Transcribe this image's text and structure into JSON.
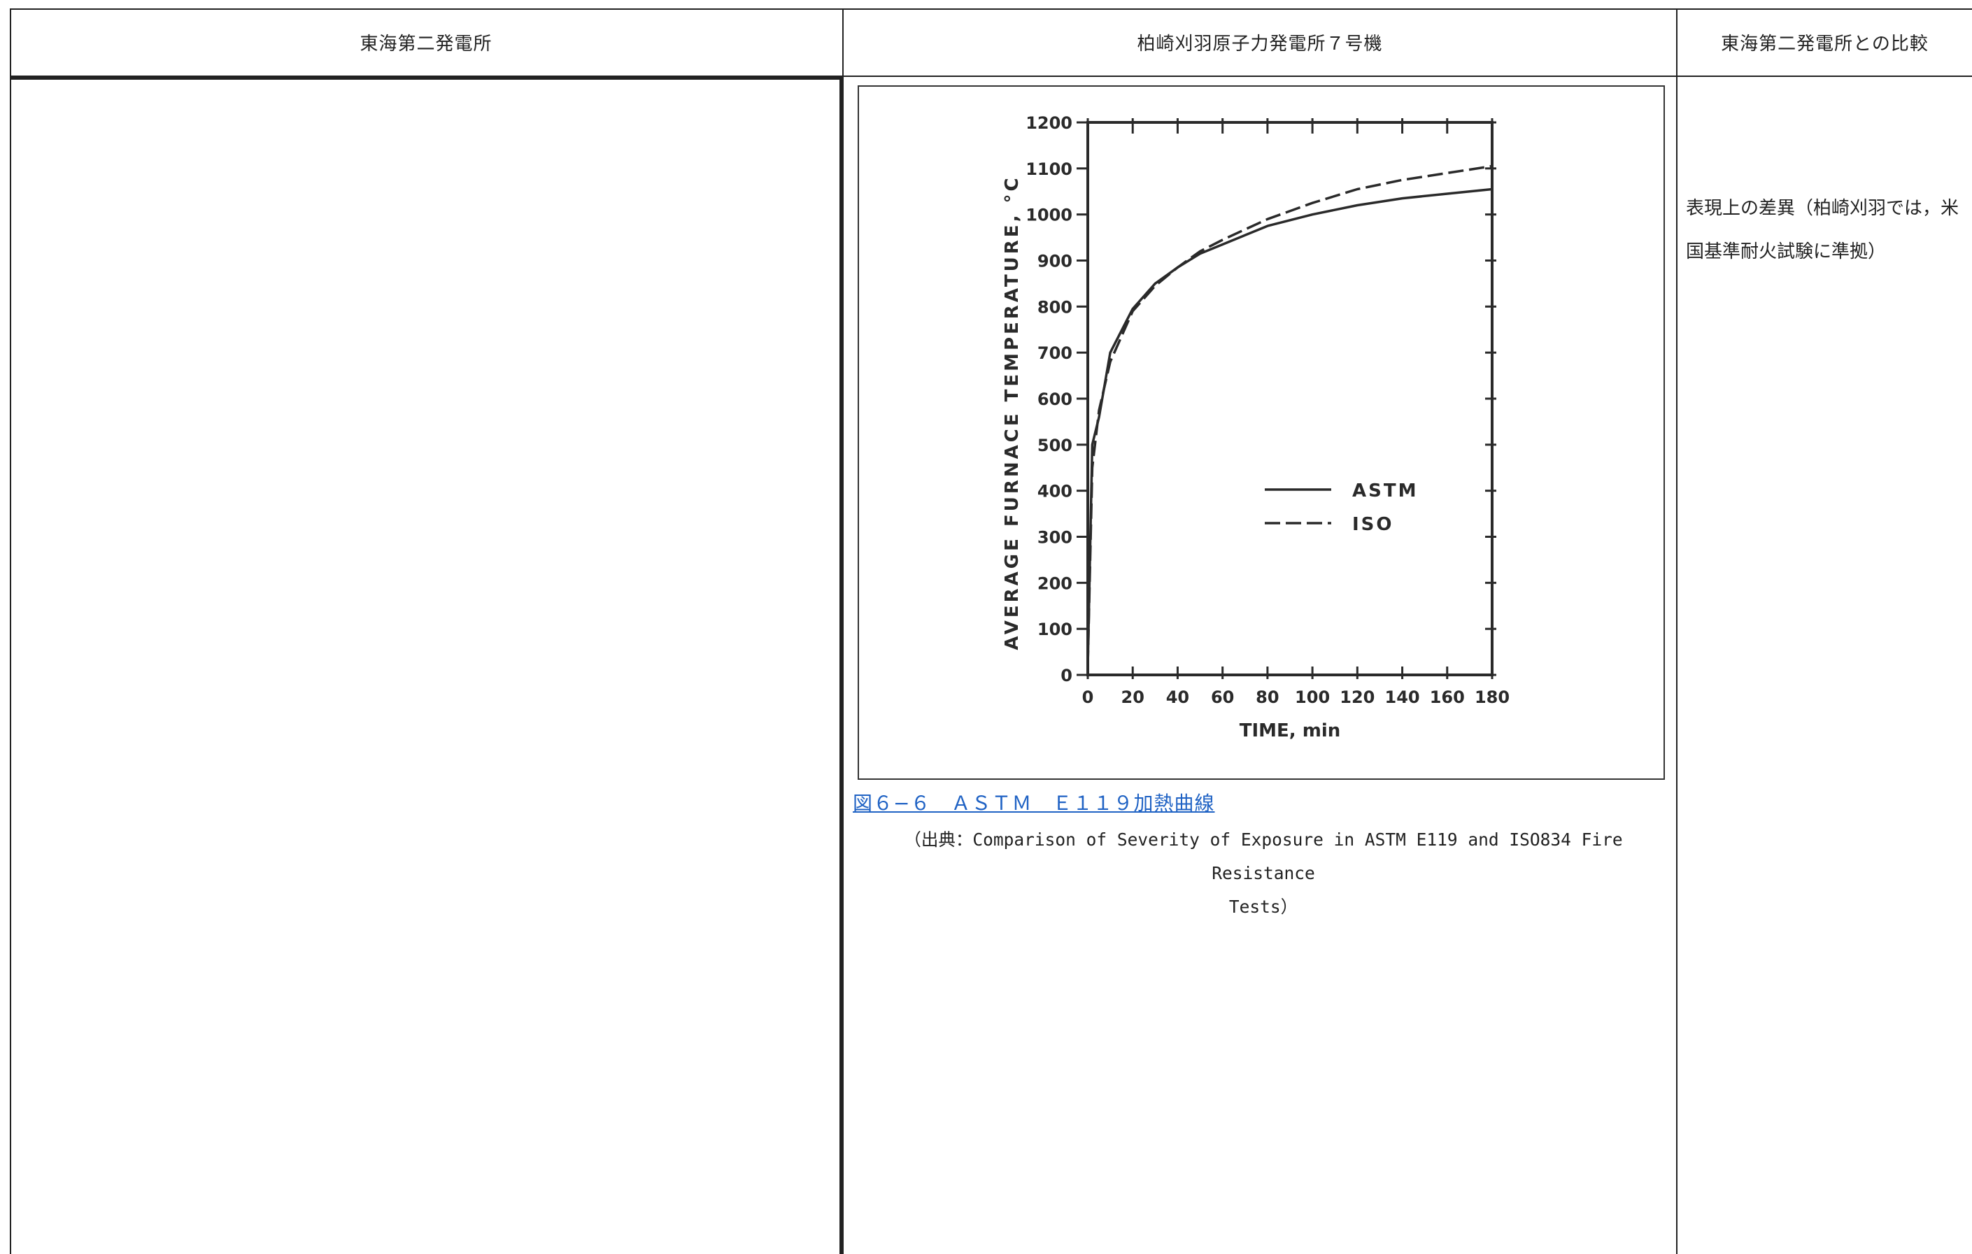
{
  "header": {
    "col1": "東海第二発電所",
    "col2": "柏崎刈羽原子力発電所７号機",
    "col3": "東海第二発電所との比較"
  },
  "figure": {
    "caption": "図６−６　ＡＳＴＭ　Ｅ１１９加熱曲線",
    "source_line1": "（出典：Comparison of Severity of Exposure in ASTM E119 and ISO834 Fire Resistance",
    "source_line2": "Tests）"
  },
  "comment": {
    "line1": "表現上の差異（柏崎刈羽では，米",
    "line2": "国基準耐火試験に準拠）"
  },
  "colors": {
    "text": "#222222",
    "caption_link": "#1f62c4",
    "rule": "#222222"
  },
  "chart_data": {
    "type": "line",
    "xlabel": "TIME,  min",
    "ylabel": "AVERAGE FURNACE TEMPERATURE, °C",
    "xlim": [
      0,
      180
    ],
    "ylim": [
      0,
      1200
    ],
    "x_ticks": [
      "0",
      "20",
      "40",
      "60",
      "80",
      "100",
      "120",
      "140",
      "160",
      "180"
    ],
    "y_ticks": [
      "0",
      "100",
      "200",
      "300",
      "400",
      "500",
      "600",
      "700",
      "800",
      "900",
      "1000",
      "1100",
      "1200"
    ],
    "legend_position": "center-right",
    "grid": false,
    "series": [
      {
        "name": "ASTM",
        "style": "solid",
        "x": [
          0,
          2,
          5,
          10,
          20,
          30,
          40,
          50,
          60,
          80,
          100,
          120,
          140,
          160,
          180
        ],
        "y": [
          20,
          500,
          560,
          700,
          795,
          850,
          885,
          915,
          935,
          975,
          1000,
          1020,
          1035,
          1045,
          1055
        ]
      },
      {
        "name": "ISO",
        "style": "dashed",
        "x": [
          0,
          2,
          5,
          10,
          20,
          30,
          40,
          50,
          60,
          80,
          100,
          120,
          140,
          160,
          180
        ],
        "y": [
          20,
          450,
          575,
          680,
          790,
          845,
          885,
          920,
          945,
          990,
          1025,
          1055,
          1075,
          1090,
          1105
        ]
      }
    ]
  }
}
